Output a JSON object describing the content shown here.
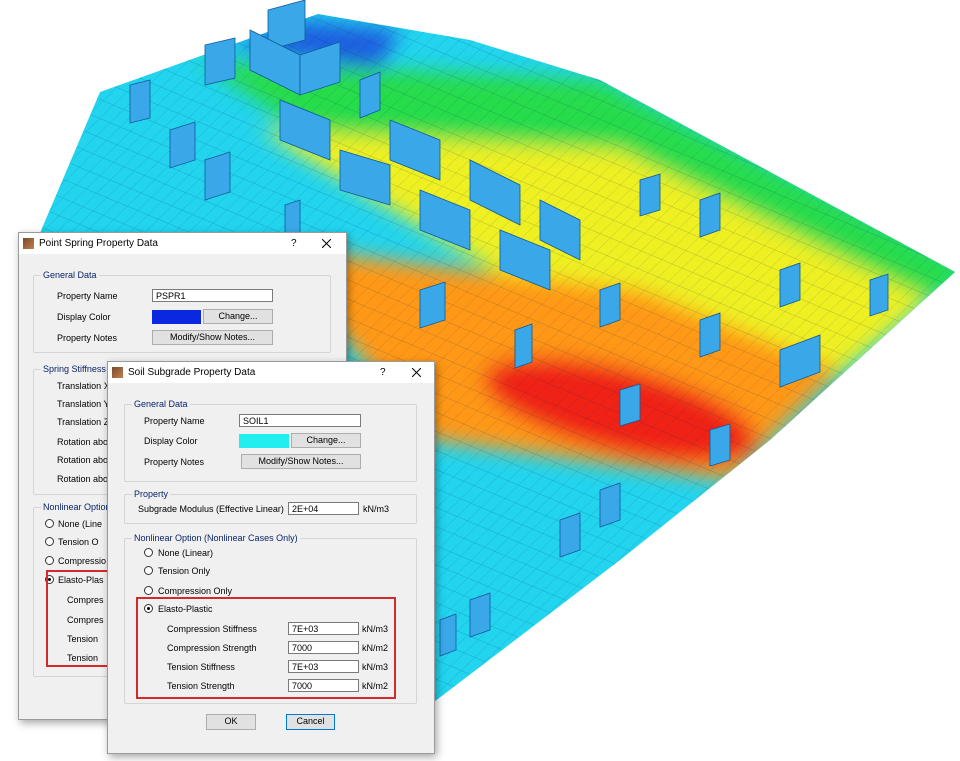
{
  "background_dialog": {
    "title": "Point Spring Property Data",
    "help": "?",
    "general_data": {
      "heading": "General Data",
      "property_name_label": "Property Name",
      "property_name": "PSPR1",
      "display_color_label": "Display Color",
      "change_button": "Change...",
      "property_notes_label": "Property Notes",
      "notes_button": "Modify/Show Notes..."
    },
    "spring_stiffness_heading": "Spring Stiffness in",
    "stiffness_labels": [
      "Translation  X",
      "Translation  Y",
      "Translation  Z",
      "Rotation about",
      "Rotation about",
      "Rotation about"
    ],
    "nonlinear_heading": "Nonlinear Option",
    "nonlinear_options": [
      "None (Line",
      "Tension O",
      "Compressio",
      "Elasto-Plas"
    ],
    "elasto_plastic_labels": [
      "Compres",
      "Compres",
      "Tension",
      "Tension"
    ]
  },
  "dialog": {
    "title": "Soil Subgrade Property Data",
    "help": "?",
    "general_data": {
      "heading": "General Data",
      "property_name_label": "Property Name",
      "property_name": "SOIL1",
      "display_color_label": "Display Color",
      "change_button": "Change...",
      "property_notes_label": "Property Notes",
      "notes_button": "Modify/Show Notes..."
    },
    "property": {
      "heading": "Property",
      "modulus_label": "Subgrade Modulus  (Effective Linear)",
      "modulus_value": "2E+04",
      "modulus_unit": "kN/m3"
    },
    "nonlinear": {
      "heading": "Nonlinear Option  (Nonlinear Cases Only)",
      "options": [
        "None (Linear)",
        "Tension Only",
        "Compression Only",
        "Elasto-Plastic"
      ],
      "rows": [
        [
          "Compression Stiffness",
          "7E+03",
          "kN/m3"
        ],
        [
          "Compression Strength",
          "7000",
          "kN/m2"
        ],
        [
          "Tension Stiffness",
          "7E+03",
          "kN/m3"
        ],
        [
          "Tension Strength",
          "7000",
          "kN/m2"
        ]
      ]
    },
    "ok_button": "OK",
    "cancel_button": "Cancel"
  }
}
